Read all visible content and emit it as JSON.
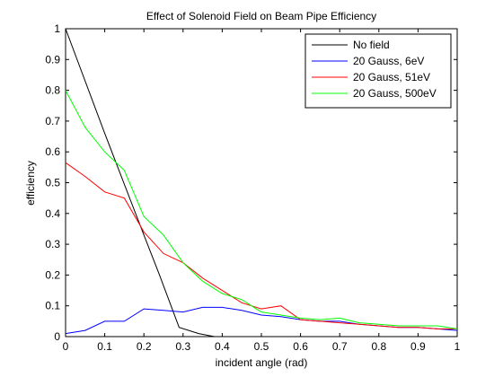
{
  "figure": {
    "title": "Effect of Solenoid Field on Beam Pipe Efficiency",
    "xlabel": "incident angle (rad)",
    "ylabel": "efficiency"
  },
  "chart_data": {
    "type": "line",
    "title": "Effect of Solenoid Field on Beam Pipe Efficiency",
    "xlabel": "incident angle (rad)",
    "ylabel": "efficiency",
    "xlim": [
      0,
      1
    ],
    "ylim": [
      0,
      1
    ],
    "xticks": [
      "0",
      "0.1",
      "0.2",
      "0.3",
      "0.4",
      "0.5",
      "0.6",
      "0.7",
      "0.8",
      "0.9",
      "1"
    ],
    "yticks": [
      "0",
      "0.1",
      "0.2",
      "0.3",
      "0.4",
      "0.5",
      "0.6",
      "0.7",
      "0.8",
      "0.9",
      "1"
    ],
    "grid": false,
    "legend_position": "top-right",
    "series": [
      {
        "name": "No field",
        "color": "#000000",
        "x": [
          0,
          0.1,
          0.2,
          0.24,
          0.29,
          0.34,
          0.38
        ],
        "y": [
          1.0,
          0.66,
          0.33,
          0.2,
          0.03,
          0.01,
          0.0
        ]
      },
      {
        "name": "20 Gauss, 6eV",
        "color": "#0000ff",
        "x": [
          0,
          0.05,
          0.1,
          0.15,
          0.2,
          0.25,
          0.3,
          0.35,
          0.4,
          0.45,
          0.5,
          0.55,
          0.6,
          0.65,
          0.7,
          0.75,
          0.8,
          0.85,
          0.9,
          0.95,
          1.0
        ],
        "y": [
          0.01,
          0.02,
          0.05,
          0.05,
          0.09,
          0.085,
          0.08,
          0.095,
          0.095,
          0.085,
          0.07,
          0.065,
          0.055,
          0.05,
          0.05,
          0.04,
          0.035,
          0.03,
          0.03,
          0.025,
          0.02
        ]
      },
      {
        "name": "20 Gauss, 51eV",
        "color": "#ff0000",
        "x": [
          0,
          0.05,
          0.1,
          0.15,
          0.2,
          0.25,
          0.3,
          0.35,
          0.4,
          0.45,
          0.5,
          0.55,
          0.6,
          0.65,
          0.7,
          0.75,
          0.8,
          0.85,
          0.9,
          0.95,
          1.0
        ],
        "y": [
          0.565,
          0.52,
          0.47,
          0.45,
          0.34,
          0.27,
          0.24,
          0.19,
          0.15,
          0.11,
          0.09,
          0.1,
          0.055,
          0.05,
          0.045,
          0.04,
          0.035,
          0.03,
          0.03,
          0.025,
          0.025
        ]
      },
      {
        "name": "20 Gauss, 500eV",
        "color": "#00ff00",
        "x": [
          0,
          0.05,
          0.1,
          0.15,
          0.2,
          0.25,
          0.3,
          0.35,
          0.4,
          0.45,
          0.5,
          0.55,
          0.6,
          0.65,
          0.7,
          0.75,
          0.8,
          0.85,
          0.9,
          0.95,
          1.0
        ],
        "y": [
          0.8,
          0.68,
          0.6,
          0.54,
          0.39,
          0.33,
          0.24,
          0.18,
          0.14,
          0.12,
          0.08,
          0.07,
          0.06,
          0.055,
          0.06,
          0.045,
          0.04,
          0.035,
          0.035,
          0.035,
          0.025
        ]
      }
    ]
  }
}
